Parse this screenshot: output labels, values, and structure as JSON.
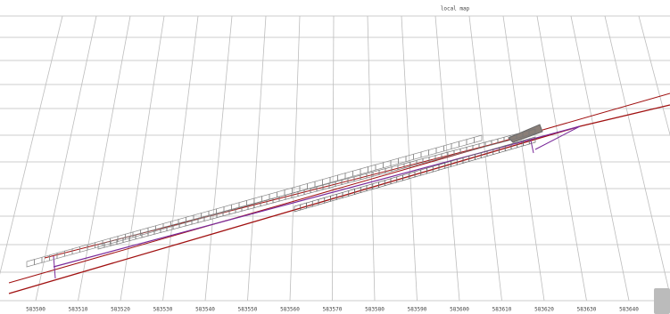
{
  "title": "local map",
  "x_axis": {
    "ticks": [
      "583500",
      "583510",
      "583520",
      "583530",
      "583540",
      "583550",
      "583560",
      "583570",
      "583580",
      "583590",
      "583600",
      "583610",
      "583620",
      "583630",
      "583640"
    ]
  }
}
